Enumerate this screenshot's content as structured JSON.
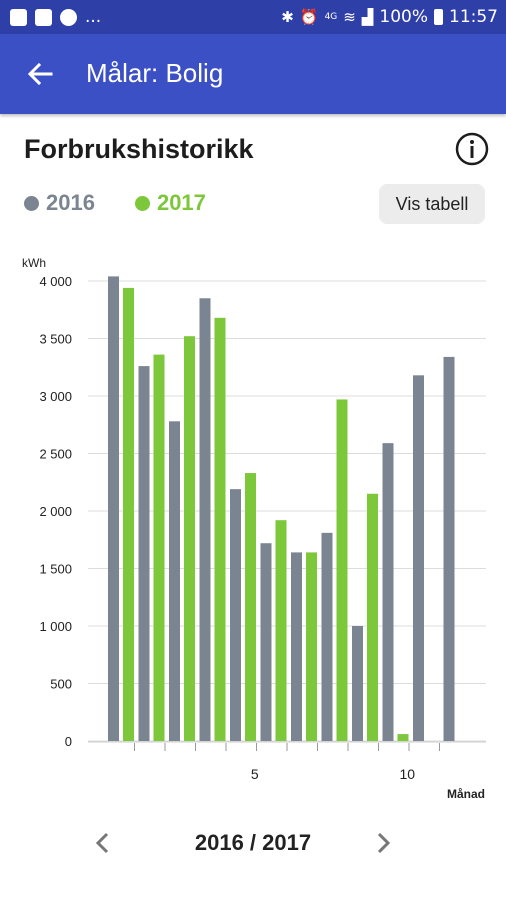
{
  "status_bar": {
    "ellipsis": "...",
    "battery": "100%",
    "time": "11:57",
    "network": "4G"
  },
  "app_bar": {
    "title": "Målar: Bolig",
    "back_icon": "arrow-left-icon"
  },
  "section": {
    "title": "Forbrukshistorikk",
    "info_icon": "info-icon"
  },
  "legend": [
    {
      "label": "2016",
      "color": "#7b8591"
    },
    {
      "label": "2017",
      "color": "#7cc73a"
    }
  ],
  "table_button": {
    "label": "Vis tabell"
  },
  "chart_data": {
    "type": "bar",
    "ylabel": "kWh",
    "xlabel": "Månad",
    "ylim": [
      0,
      4000
    ],
    "yticks": [
      0,
      500,
      1000,
      1500,
      2000,
      2500,
      3000,
      3500,
      4000
    ],
    "ytick_labels": [
      "0",
      "500",
      "1 000",
      "1 500",
      "2 000",
      "2 500",
      "3 000",
      "3 500",
      "4 000"
    ],
    "categories": [
      1,
      2,
      3,
      4,
      5,
      6,
      7,
      8,
      9,
      10,
      11,
      12
    ],
    "xtick_labels": {
      "5": "5",
      "10": "10"
    },
    "grid": "horizontal",
    "series": [
      {
        "name": "2016",
        "color": "#7b8591",
        "values": [
          4040,
          3260,
          2780,
          3850,
          2190,
          1720,
          1640,
          1810,
          1000,
          2590,
          3180,
          3340
        ]
      },
      {
        "name": "2017",
        "color": "#7cc73a",
        "values": [
          3940,
          3360,
          3520,
          3680,
          2330,
          1920,
          1640,
          2970,
          2150,
          60,
          null,
          null
        ]
      }
    ]
  },
  "pager": {
    "label": "2016 / 2017",
    "prev_icon": "chevron-left-icon",
    "next_icon": "chevron-right-icon"
  }
}
